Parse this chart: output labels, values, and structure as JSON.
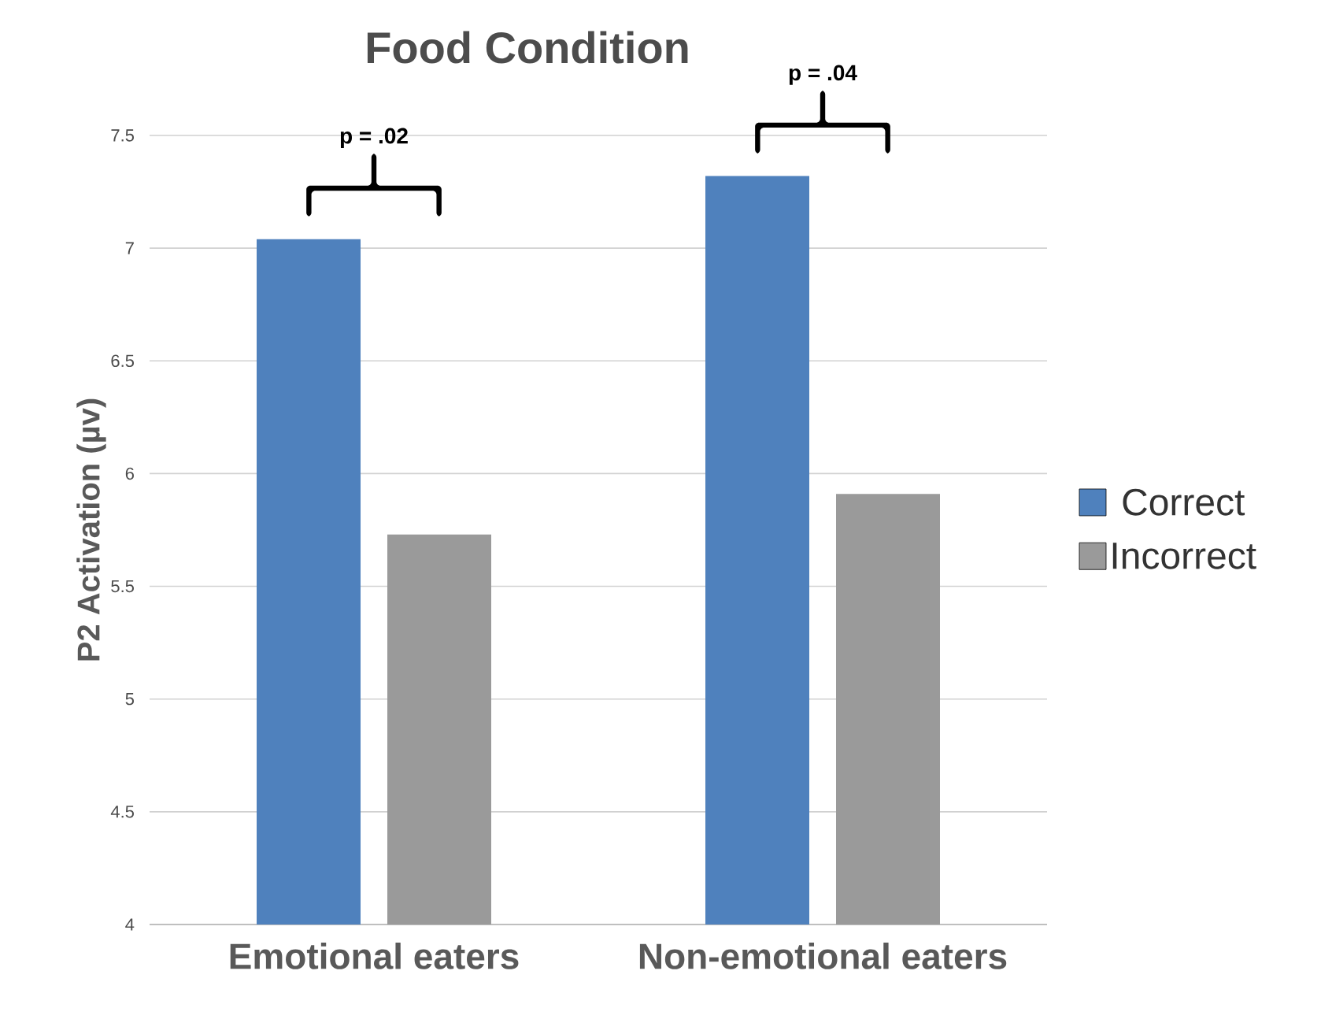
{
  "chart_data": {
    "type": "bar",
    "title": "Food Condition",
    "ylabel": "P2 Activation (µv)",
    "categories": [
      "Emotional eaters",
      "Non-emotional eaters"
    ],
    "series": [
      {
        "name": "Correct",
        "color": "#4f81bd",
        "values": [
          7.04,
          7.32
        ]
      },
      {
        "name": "Incorrect",
        "color": "#9a9a9a",
        "values": [
          5.73,
          5.91
        ]
      }
    ],
    "ylim": [
      4,
      7.5
    ],
    "yticks": [
      4,
      4.5,
      5,
      5.5,
      6,
      6.5,
      7,
      7.5
    ],
    "grid": "y",
    "legend": "right",
    "annotations": [
      "p = .02",
      "p = .04"
    ]
  }
}
